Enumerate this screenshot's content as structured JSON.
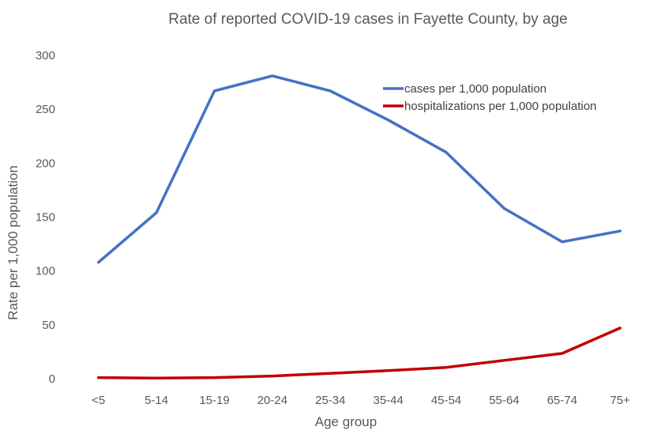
{
  "chart_data": {
    "type": "line",
    "title": "Rate of reported COVID-19 cases in Fayette County, by age",
    "xlabel": "Age group",
    "ylabel": "Rate per 1,000 population",
    "ylim": [
      0,
      300
    ],
    "yticks": [
      "0",
      "50",
      "100",
      "150",
      "200",
      "250",
      "300"
    ],
    "grid": false,
    "legend_position": "top-right",
    "categories": [
      "<5",
      "5-14",
      "15-19",
      "20-24",
      "25-34",
      "35-44",
      "45-54",
      "55-64",
      "65-74",
      "75+"
    ],
    "series": [
      {
        "name": "cases per 1,000 population",
        "color": "#4472C4",
        "values": [
          108,
          154,
          267,
          281,
          267,
          240,
          210,
          158,
          127,
          137
        ]
      },
      {
        "name": "hospitalizations per 1,000 population",
        "color": "#C00000",
        "values": [
          1,
          0.5,
          1,
          2.5,
          5,
          7.5,
          10.5,
          17,
          23.5,
          47
        ]
      }
    ]
  }
}
